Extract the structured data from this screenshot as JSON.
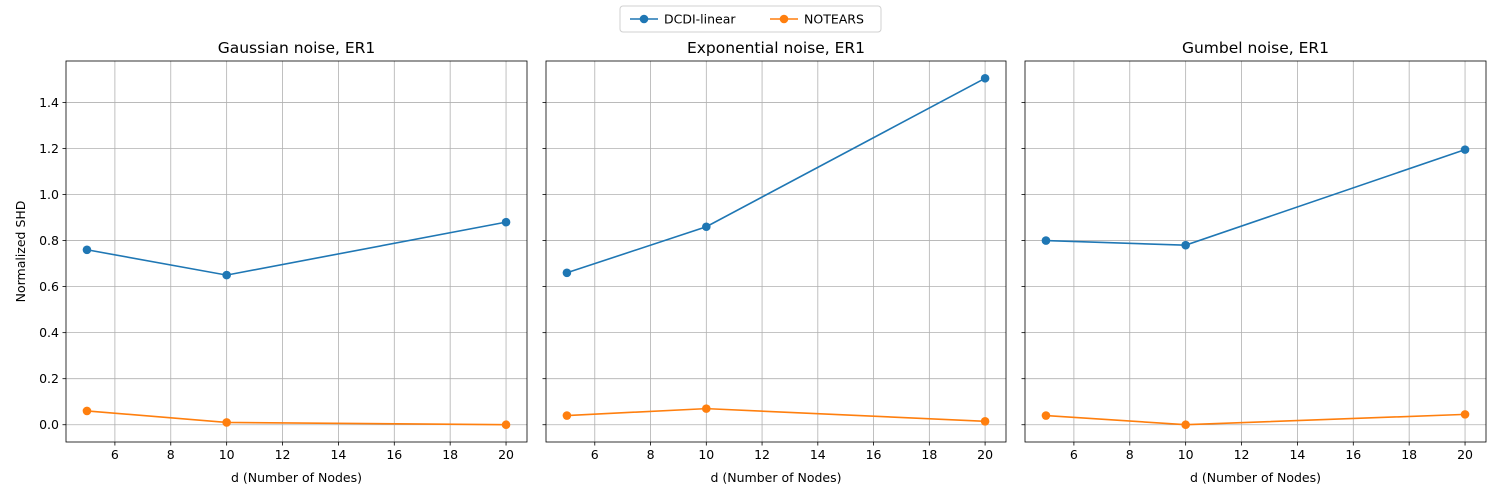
{
  "chart_data": [
    {
      "type": "line",
      "title": "Gaussian noise, ER1",
      "xlabel": "d (Number of Nodes)",
      "ylabel": "Normalized SHD",
      "x": [
        5,
        10,
        20
      ],
      "xlim": [
        4.25,
        20.75
      ],
      "ylim": [
        -0.075,
        1.58
      ],
      "xticks": [
        6,
        8,
        10,
        12,
        14,
        16,
        18,
        20
      ],
      "yticks": [
        0.0,
        0.2,
        0.4,
        0.6,
        0.8,
        1.0,
        1.2,
        1.4
      ],
      "grid": true,
      "series": [
        {
          "name": "DCDI-linear",
          "values": [
            0.76,
            0.65,
            0.88
          ],
          "color": "#1f77b4"
        },
        {
          "name": "NOTEARS",
          "values": [
            0.06,
            0.01,
            0.0
          ],
          "color": "#ff7f0e"
        }
      ]
    },
    {
      "type": "line",
      "title": "Exponential noise, ER1",
      "xlabel": "d (Number of Nodes)",
      "ylabel": "",
      "x": [
        5,
        10,
        20
      ],
      "xlim": [
        4.25,
        20.75
      ],
      "ylim": [
        -0.075,
        1.58
      ],
      "xticks": [
        6,
        8,
        10,
        12,
        14,
        16,
        18,
        20
      ],
      "yticks": [
        0.0,
        0.2,
        0.4,
        0.6,
        0.8,
        1.0,
        1.2,
        1.4
      ],
      "grid": true,
      "series": [
        {
          "name": "DCDI-linear",
          "values": [
            0.66,
            0.86,
            1.505
          ],
          "color": "#1f77b4"
        },
        {
          "name": "NOTEARS",
          "values": [
            0.04,
            0.07,
            0.015
          ],
          "color": "#ff7f0e"
        }
      ]
    },
    {
      "type": "line",
      "title": "Gumbel noise, ER1",
      "xlabel": "d (Number of Nodes)",
      "ylabel": "",
      "x": [
        5,
        10,
        20
      ],
      "xlim": [
        4.25,
        20.75
      ],
      "ylim": [
        -0.075,
        1.58
      ],
      "xticks": [
        6,
        8,
        10,
        12,
        14,
        16,
        18,
        20
      ],
      "yticks": [
        0.0,
        0.2,
        0.4,
        0.6,
        0.8,
        1.0,
        1.2,
        1.4
      ],
      "grid": true,
      "series": [
        {
          "name": "DCDI-linear",
          "values": [
            0.8,
            0.78,
            1.195
          ],
          "color": "#1f77b4"
        },
        {
          "name": "NOTEARS",
          "values": [
            0.04,
            0.0,
            0.045
          ],
          "color": "#ff7f0e"
        }
      ]
    }
  ],
  "legend": {
    "placement": "top-center",
    "entries": [
      {
        "label": "DCDI-linear",
        "color": "#1f77b4"
      },
      {
        "label": "NOTEARS",
        "color": "#ff7f0e"
      }
    ]
  }
}
